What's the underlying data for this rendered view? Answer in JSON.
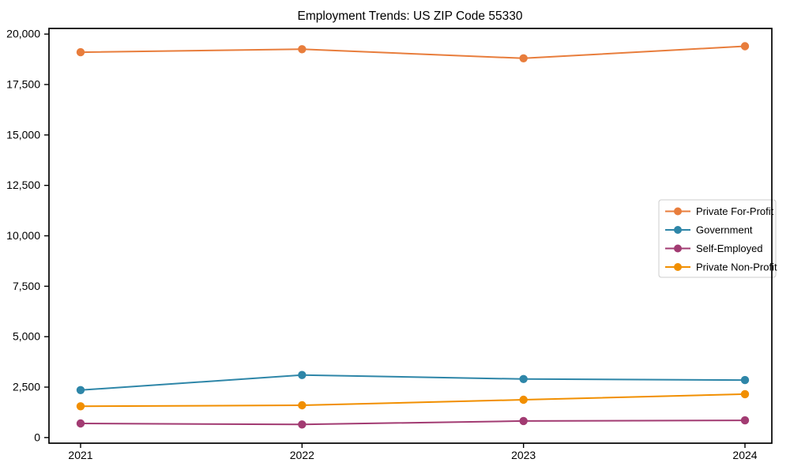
{
  "chart_data": {
    "type": "line",
    "title": "Employment Trends: US ZIP Code 55330",
    "xlabel": "",
    "ylabel": "",
    "categories": [
      "2021",
      "2022",
      "2023",
      "2024"
    ],
    "y_ticks": [
      0,
      2500,
      5000,
      7500,
      10000,
      12500,
      15000,
      17500,
      20000
    ],
    "y_tick_labels": [
      "0",
      "2,500",
      "5,000",
      "7,500",
      "10,000",
      "12,500",
      "15,000",
      "17,500",
      "20,000"
    ],
    "ylim": [
      -280,
      20280
    ],
    "grid": false,
    "legend": {
      "position": "center-right",
      "background": "#ffffff",
      "border_color": "#cccccc"
    },
    "series": [
      {
        "name": "Private For-Profit",
        "color": "#E87D3C",
        "values": [
          19100,
          19250,
          18800,
          19400
        ]
      },
      {
        "name": "Government",
        "color": "#2E86A8",
        "values": [
          2350,
          3100,
          2900,
          2850
        ]
      },
      {
        "name": "Self-Employed",
        "color": "#A23B72",
        "values": [
          700,
          650,
          820,
          850
        ]
      },
      {
        "name": "Private Non-Profit",
        "color": "#F18F01",
        "values": [
          1550,
          1600,
          1875,
          2150
        ]
      }
    ]
  }
}
